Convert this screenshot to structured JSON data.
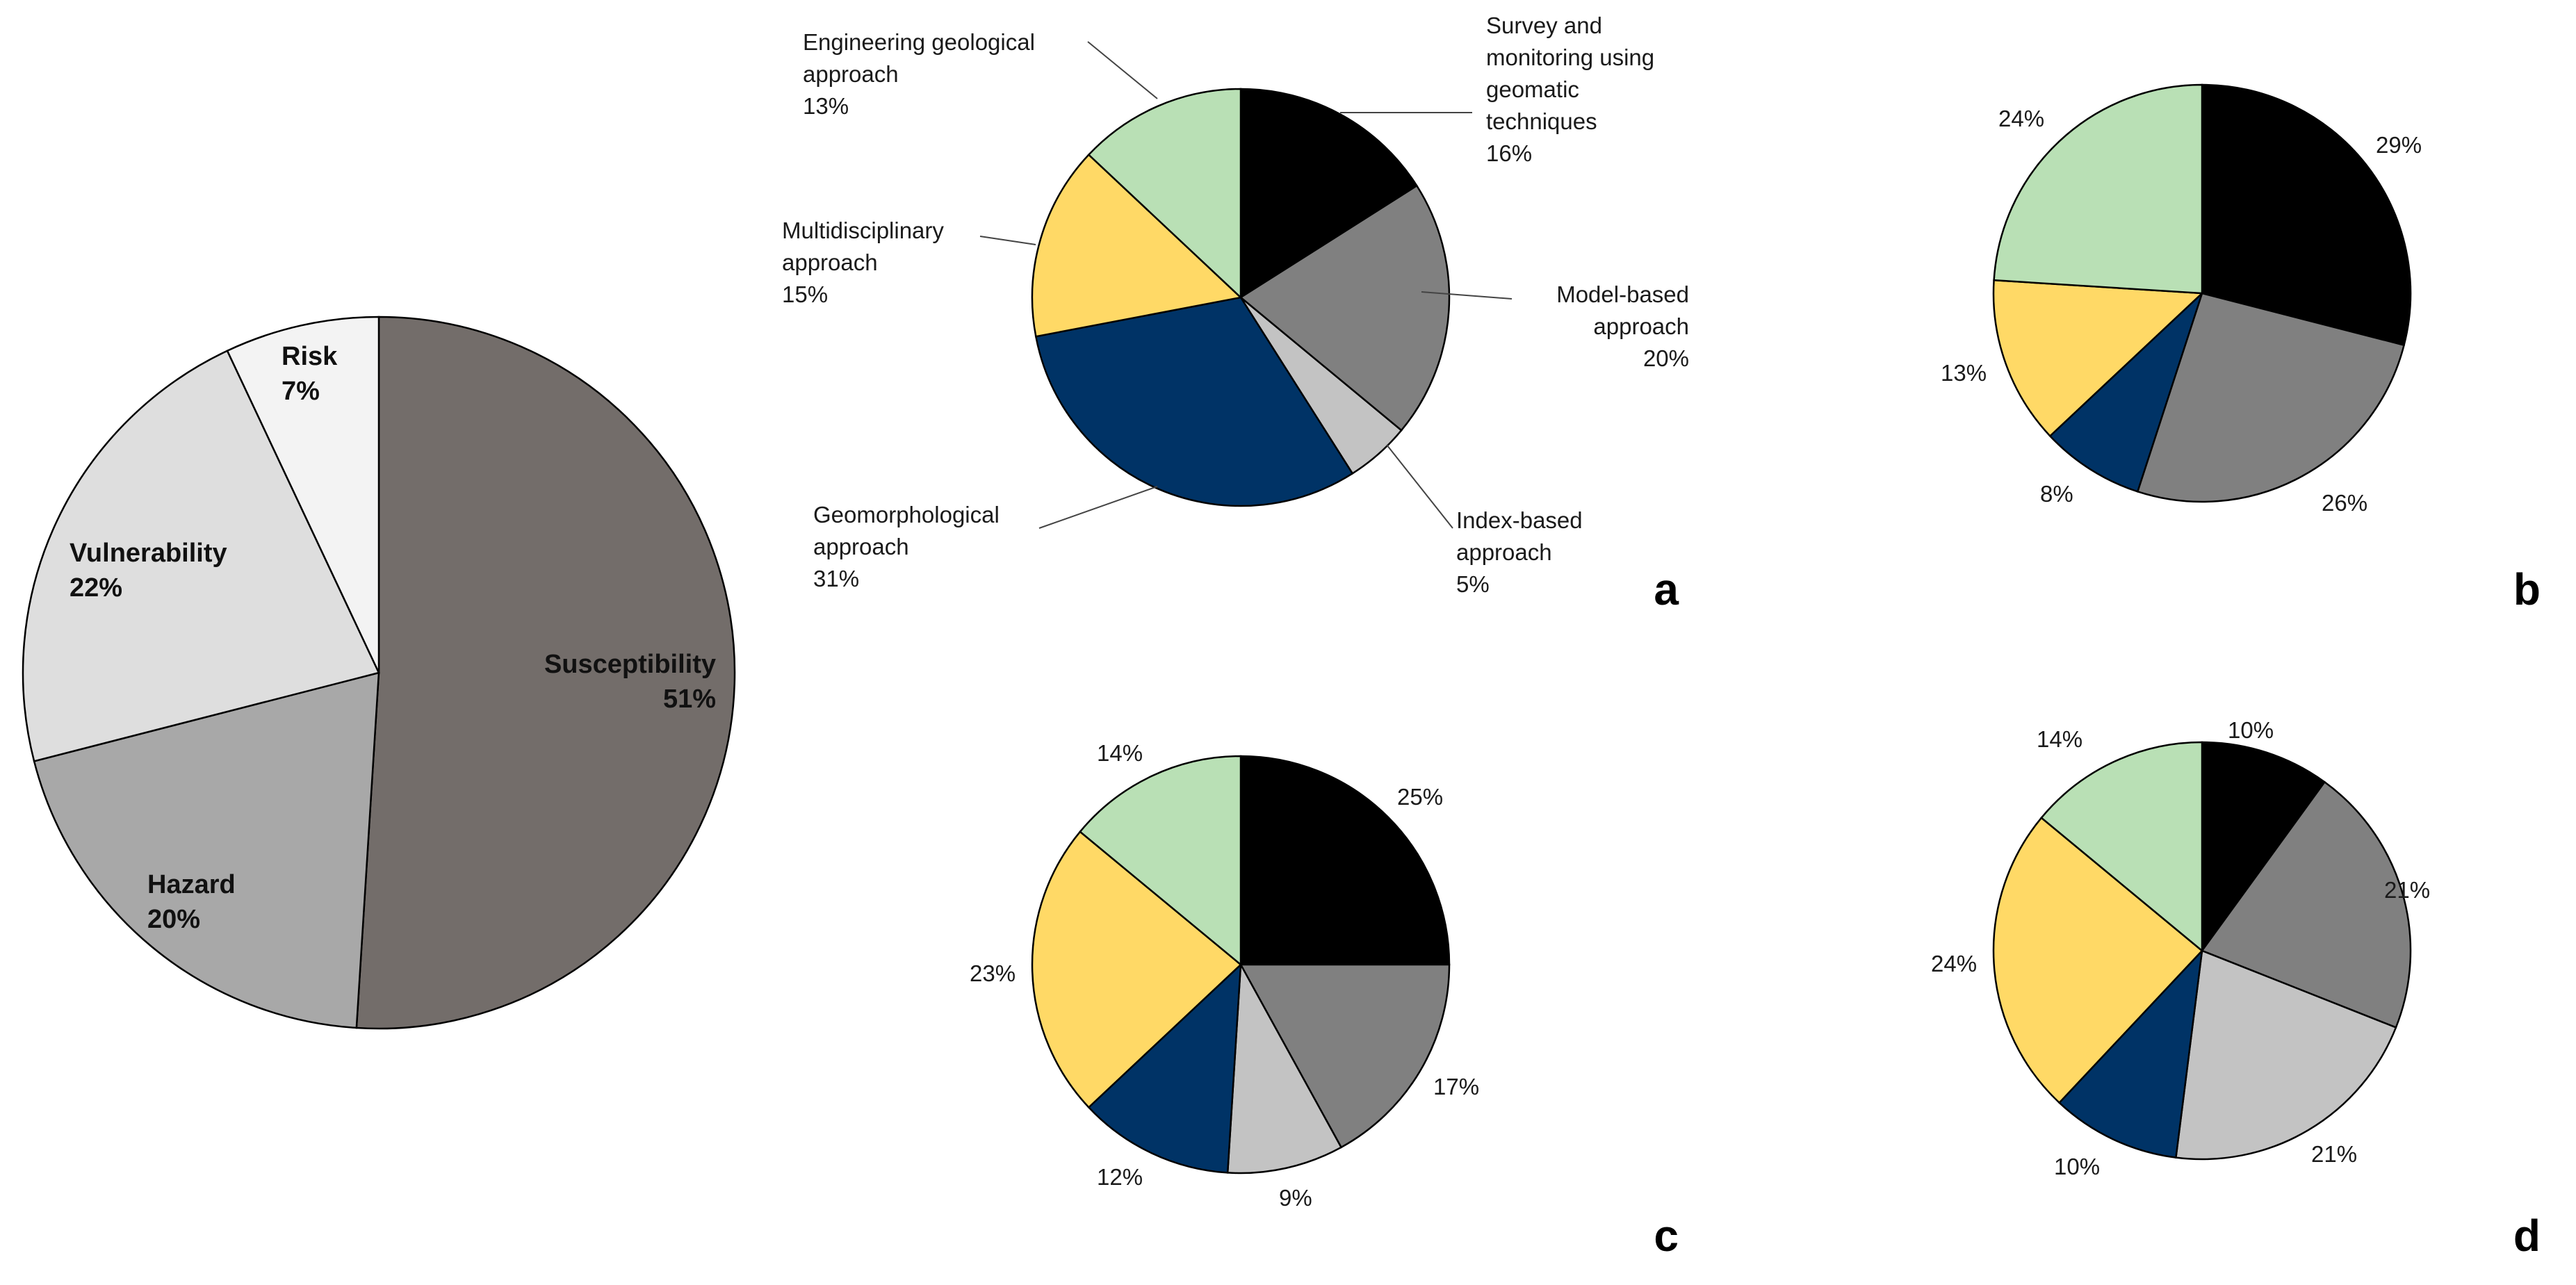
{
  "colors": {
    "survey": "#000000",
    "model": "#808080",
    "index": "#c3c3c3",
    "geomorph": "#003366",
    "multi": "#ffd966",
    "engineering": "#b9e0b5",
    "susceptibility": "#736d6a",
    "hazard": "#a8a8a8",
    "vulnerability": "#dedede",
    "risk": "#f3f3f3"
  },
  "chart_data": [
    {
      "id": "main",
      "type": "pie",
      "title": "",
      "slices": [
        {
          "key": "susceptibility",
          "label": "Susceptibility",
          "value": 51,
          "value_label": "51%"
        },
        {
          "key": "hazard",
          "label": "Hazard",
          "value": 20,
          "value_label": "20%"
        },
        {
          "key": "vulnerability",
          "label": "Vulnerability",
          "value": 22,
          "value_label": "22%"
        },
        {
          "key": "risk",
          "label": "Risk",
          "value": 7,
          "value_label": "7%"
        }
      ]
    },
    {
      "id": "a",
      "type": "pie",
      "panel": "a",
      "slices": [
        {
          "key": "survey",
          "label_lines": [
            "Survey and",
            "monitoring using",
            "geomatic",
            "techniques"
          ],
          "value": 16,
          "value_label": "16%"
        },
        {
          "key": "model",
          "label_lines": [
            "Model-based",
            "approach"
          ],
          "value": 20,
          "value_label": "20%"
        },
        {
          "key": "index",
          "label_lines": [
            "Index-based",
            "approach"
          ],
          "value": 5,
          "value_label": "5%"
        },
        {
          "key": "geomorph",
          "label_lines": [
            "Geomorphological",
            "approach"
          ],
          "value": 31,
          "value_label": "31%"
        },
        {
          "key": "multi",
          "label_lines": [
            "Multidisciplinary",
            "approach"
          ],
          "value": 15,
          "value_label": "15%"
        },
        {
          "key": "engineering",
          "label_lines": [
            "Engineering geological",
            "approach"
          ],
          "value": 13,
          "value_label": "13%"
        }
      ]
    },
    {
      "id": "b",
      "type": "pie",
      "panel": "b",
      "slices": [
        {
          "key": "survey",
          "value": 29,
          "value_label": "29%"
        },
        {
          "key": "model",
          "value": 26,
          "value_label": "26%"
        },
        {
          "key": "geomorph",
          "value": 8,
          "value_label": "8%"
        },
        {
          "key": "multi",
          "value": 13,
          "value_label": "13%"
        },
        {
          "key": "engineering",
          "value": 24,
          "value_label": "24%"
        }
      ]
    },
    {
      "id": "c",
      "type": "pie",
      "panel": "c",
      "slices": [
        {
          "key": "survey",
          "value": 25,
          "value_label": "25%"
        },
        {
          "key": "model",
          "value": 17,
          "value_label": "17%"
        },
        {
          "key": "index",
          "value": 9,
          "value_label": "9%"
        },
        {
          "key": "geomorph",
          "value": 12,
          "value_label": "12%"
        },
        {
          "key": "multi",
          "value": 23,
          "value_label": "23%"
        },
        {
          "key": "engineering",
          "value": 14,
          "value_label": "14%"
        }
      ]
    },
    {
      "id": "d",
      "type": "pie",
      "panel": "d",
      "slices": [
        {
          "key": "survey",
          "value": 10,
          "value_label": "10%"
        },
        {
          "key": "model",
          "value": 21,
          "value_label": "21%"
        },
        {
          "key": "index",
          "value": 21,
          "value_label": "21%"
        },
        {
          "key": "geomorph",
          "value": 10,
          "value_label": "10%"
        },
        {
          "key": "multi",
          "value": 24,
          "value_label": "24%"
        },
        {
          "key": "engineering",
          "value": 14,
          "value_label": "14%"
        }
      ]
    }
  ]
}
